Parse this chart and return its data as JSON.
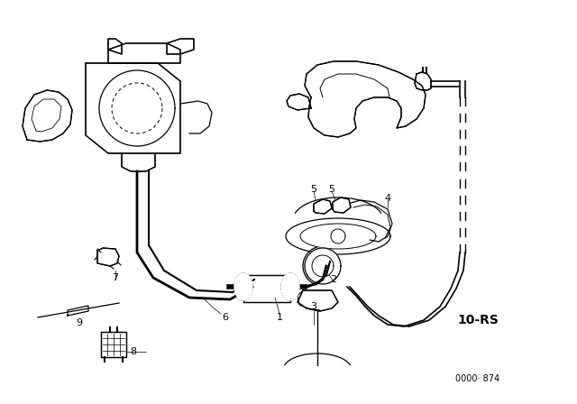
{
  "bg_color": "#ffffff",
  "line_color": "#000000",
  "fig_width": 6.4,
  "fig_height": 4.48,
  "dpi": 100,
  "label_10rs": "10-RS",
  "label_partnum": "0000· 874"
}
